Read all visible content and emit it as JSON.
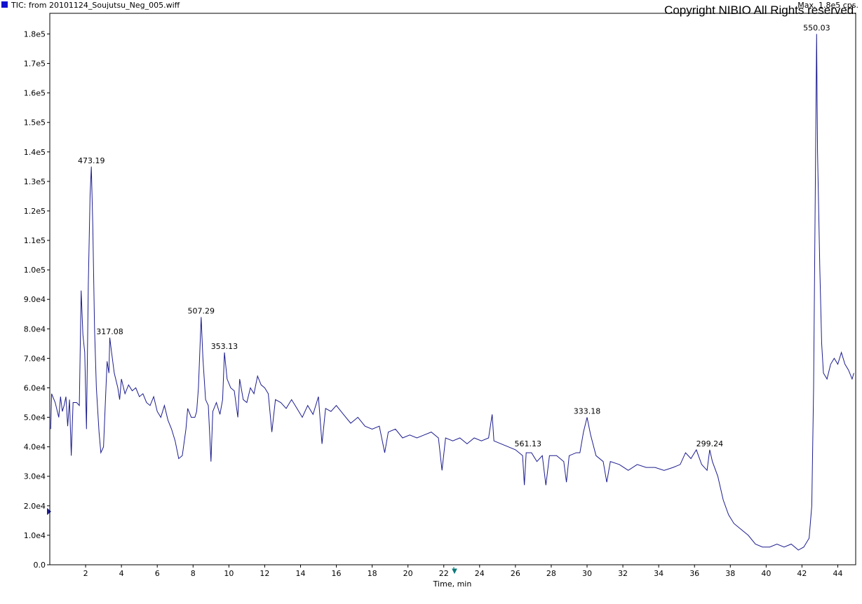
{
  "chart_data": {
    "type": "line",
    "title": "TIC: from 20101124_Soujutsu_Neg_005.wiff",
    "subtitle": "Max. 1.8e5 cps.",
    "copyright": "Copyright NIBIO All Rights reserved.",
    "x_label": "Time, min",
    "xlim": [
      0,
      45
    ],
    "ylim": [
      0,
      187000
    ],
    "xticks": [
      2,
      4,
      6,
      8,
      10,
      12,
      14,
      16,
      18,
      20,
      22,
      24,
      26,
      28,
      30,
      32,
      34,
      36,
      38,
      40,
      42,
      44
    ],
    "yticks": [
      {
        "value": 0,
        "label": "0.0"
      },
      {
        "value": 10000,
        "label": "1.0e4"
      },
      {
        "value": 20000,
        "label": "2.0e4"
      },
      {
        "value": 30000,
        "label": "3.0e4"
      },
      {
        "value": 40000,
        "label": "4.0e4"
      },
      {
        "value": 50000,
        "label": "5.0e4"
      },
      {
        "value": 60000,
        "label": "6.0e4"
      },
      {
        "value": 70000,
        "label": "7.0e4"
      },
      {
        "value": 80000,
        "label": "8.0e4"
      },
      {
        "value": 90000,
        "label": "9.0e4"
      },
      {
        "value": 100000,
        "label": "1.0e5"
      },
      {
        "value": 110000,
        "label": "1.1e5"
      },
      {
        "value": 120000,
        "label": "1.2e5"
      },
      {
        "value": 130000,
        "label": "1.3e5"
      },
      {
        "value": 140000,
        "label": "1.4e5"
      },
      {
        "value": 150000,
        "label": "1.5e5"
      },
      {
        "value": 160000,
        "label": "1.6e5"
      },
      {
        "value": 170000,
        "label": "1.7e5"
      },
      {
        "value": 180000,
        "label": "1.8e5"
      }
    ],
    "grid": false,
    "series": [
      {
        "name": "TIC",
        "color": "#1c1c8f",
        "x": [
          0.05,
          0.1,
          0.3,
          0.5,
          0.6,
          0.7,
          0.8,
          0.9,
          1.0,
          1.1,
          1.2,
          1.3,
          1.5,
          1.65,
          1.75,
          1.85,
          1.95,
          2.05,
          2.15,
          2.25,
          2.32,
          2.4,
          2.5,
          2.6,
          2.75,
          2.85,
          3.0,
          3.1,
          3.2,
          3.3,
          3.35,
          3.45,
          3.6,
          3.8,
          3.9,
          4.0,
          4.2,
          4.4,
          4.6,
          4.8,
          5.0,
          5.2,
          5.4,
          5.6,
          5.8,
          6.0,
          6.2,
          6.4,
          6.6,
          6.8,
          7.0,
          7.2,
          7.4,
          7.6,
          7.7,
          7.9,
          8.1,
          8.2,
          8.3,
          8.45,
          8.55,
          8.7,
          8.85,
          9.0,
          9.1,
          9.3,
          9.5,
          9.65,
          9.75,
          9.9,
          10.1,
          10.3,
          10.5,
          10.6,
          10.8,
          11.0,
          11.2,
          11.4,
          11.6,
          11.8,
          12.0,
          12.2,
          12.4,
          12.6,
          12.9,
          13.2,
          13.5,
          13.8,
          14.1,
          14.4,
          14.7,
          15.0,
          15.2,
          15.4,
          15.7,
          16.0,
          16.4,
          16.8,
          17.2,
          17.6,
          18.0,
          18.4,
          18.7,
          18.9,
          19.3,
          19.7,
          20.1,
          20.5,
          20.9,
          21.3,
          21.7,
          21.9,
          22.1,
          22.5,
          22.9,
          23.3,
          23.7,
          24.1,
          24.5,
          24.7,
          24.8,
          25.2,
          25.6,
          26.0,
          26.4,
          26.5,
          26.6,
          26.9,
          27.2,
          27.5,
          27.7,
          27.9,
          28.3,
          28.7,
          28.85,
          29.0,
          29.4,
          29.6,
          29.8,
          30.0,
          30.2,
          30.5,
          30.9,
          31.1,
          31.3,
          31.8,
          32.3,
          32.8,
          33.3,
          33.8,
          34.3,
          34.8,
          35.2,
          35.5,
          35.8,
          36.1,
          36.4,
          36.7,
          36.85,
          37.0,
          37.3,
          37.6,
          37.9,
          38.2,
          38.6,
          39.0,
          39.4,
          39.8,
          40.2,
          40.6,
          41.0,
          41.4,
          41.8,
          42.1,
          42.4,
          42.55,
          42.65,
          42.75,
          42.82,
          42.87,
          42.93,
          43.0,
          43.1,
          43.2,
          43.4,
          43.6,
          43.8,
          44.0,
          44.2,
          44.4,
          44.6,
          44.8,
          44.9
        ],
        "values": [
          46000,
          58000,
          55000,
          50000,
          57000,
          52000,
          54000,
          57000,
          47000,
          56000,
          37000,
          55000,
          55000,
          54000,
          93000,
          78000,
          72000,
          46000,
          95000,
          125000,
          135000,
          115000,
          80000,
          60000,
          45000,
          38000,
          40000,
          55000,
          69000,
          65000,
          77000,
          72000,
          65000,
          60000,
          56000,
          63000,
          58000,
          61000,
          59000,
          60000,
          57000,
          58000,
          55000,
          54000,
          57000,
          52000,
          50000,
          54000,
          49000,
          46000,
          42000,
          36000,
          37000,
          46000,
          53000,
          50000,
          50000,
          52000,
          60000,
          84000,
          70000,
          56000,
          54000,
          35000,
          52000,
          55000,
          51000,
          56000,
          72000,
          63000,
          60000,
          59000,
          50000,
          63000,
          56000,
          55000,
          60000,
          58000,
          64000,
          61000,
          60000,
          58000,
          45000,
          56000,
          55000,
          53000,
          56000,
          53000,
          50000,
          54000,
          51000,
          57000,
          41000,
          53000,
          52000,
          54000,
          51000,
          48000,
          50000,
          47000,
          46000,
          47000,
          38000,
          45000,
          46000,
          43000,
          44000,
          43000,
          44000,
          45000,
          43000,
          32000,
          43000,
          42000,
          43000,
          41000,
          43000,
          42000,
          43000,
          51000,
          42000,
          41000,
          40000,
          39000,
          37000,
          27000,
          38000,
          38000,
          35000,
          37000,
          27000,
          37000,
          37000,
          35000,
          28000,
          37000,
          38000,
          38000,
          45000,
          50000,
          44000,
          37000,
          35000,
          28000,
          35000,
          34000,
          32000,
          34000,
          33000,
          33000,
          32000,
          33000,
          34000,
          38000,
          36000,
          39000,
          34000,
          32000,
          39000,
          35000,
          30000,
          22000,
          17000,
          14000,
          12000,
          10000,
          7000,
          6000,
          6000,
          7000,
          6000,
          7000,
          5000,
          6000,
          9000,
          20000,
          60000,
          130000,
          180000,
          140000,
          122000,
          100000,
          75000,
          65000,
          63000,
          68000,
          70000,
          68000,
          72000,
          68000,
          66000,
          63000,
          65000
        ]
      }
    ],
    "annotations": [
      {
        "text": "473.19",
        "x": 2.32,
        "y": 135000
      },
      {
        "text": "317.08",
        "x": 3.35,
        "y": 77000
      },
      {
        "text": "507.29",
        "x": 8.45,
        "y": 84000
      },
      {
        "text": "353.13",
        "x": 9.75,
        "y": 72000
      },
      {
        "text": "561.13",
        "x": 26.7,
        "y": 39000
      },
      {
        "text": "333.18",
        "x": 30.0,
        "y": 50000
      },
      {
        "text": "299.24",
        "x": 36.85,
        "y": 39000
      },
      {
        "text": "550.03",
        "x": 42.82,
        "y": 180000
      }
    ]
  }
}
